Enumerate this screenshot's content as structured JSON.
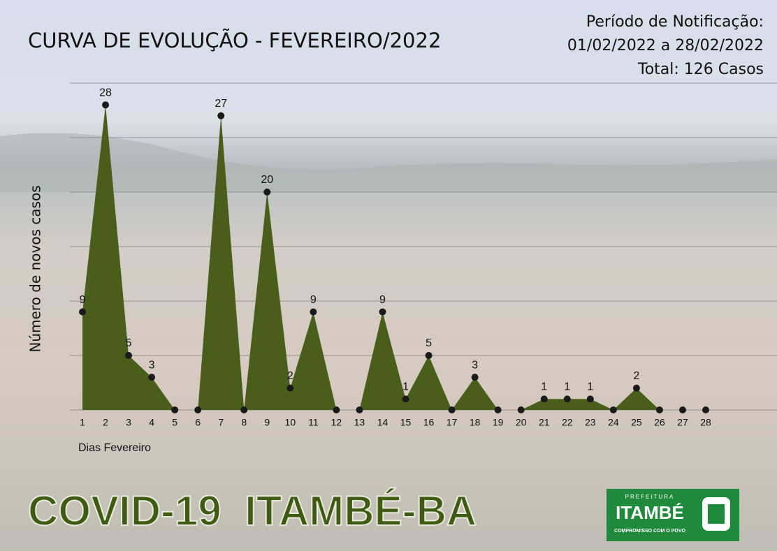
{
  "chart_data": {
    "type": "area",
    "title": "CURVA DE EVOLUÇÃO - FEVEREIRO/2022",
    "period_lines": [
      "Período de Notificação:",
      "01/02/2022 a 28/02/2022",
      "Total: 126 Casos"
    ],
    "y_label": "Número de novos casos",
    "x_label": "Dias Fevereiro",
    "banner": "COVID-19  ITAMBÉ-BA",
    "logo": {
      "top": "PREFEITURA",
      "name": "ITAMBÉ",
      "motto": "COMPROMISSO COM O POVO"
    },
    "categories": [
      "1",
      "2",
      "3",
      "4",
      "5",
      "6",
      "7",
      "8",
      "9",
      "10",
      "11",
      "12",
      "13",
      "14",
      "15",
      "16",
      "17",
      "18",
      "19",
      "20",
      "21",
      "22",
      "23",
      "24",
      "25",
      "26",
      "27",
      "28"
    ],
    "values": [
      9,
      28,
      5,
      3,
      0,
      0,
      27,
      0,
      20,
      2,
      9,
      0,
      0,
      9,
      1,
      5,
      0,
      3,
      0,
      0,
      1,
      1,
      1,
      0,
      2,
      0,
      0,
      0
    ],
    "color": "#4a5e1c",
    "ylim": [
      0,
      30
    ],
    "yticks": [
      0,
      5,
      10,
      15,
      20,
      25,
      30
    ],
    "grid": true
  }
}
